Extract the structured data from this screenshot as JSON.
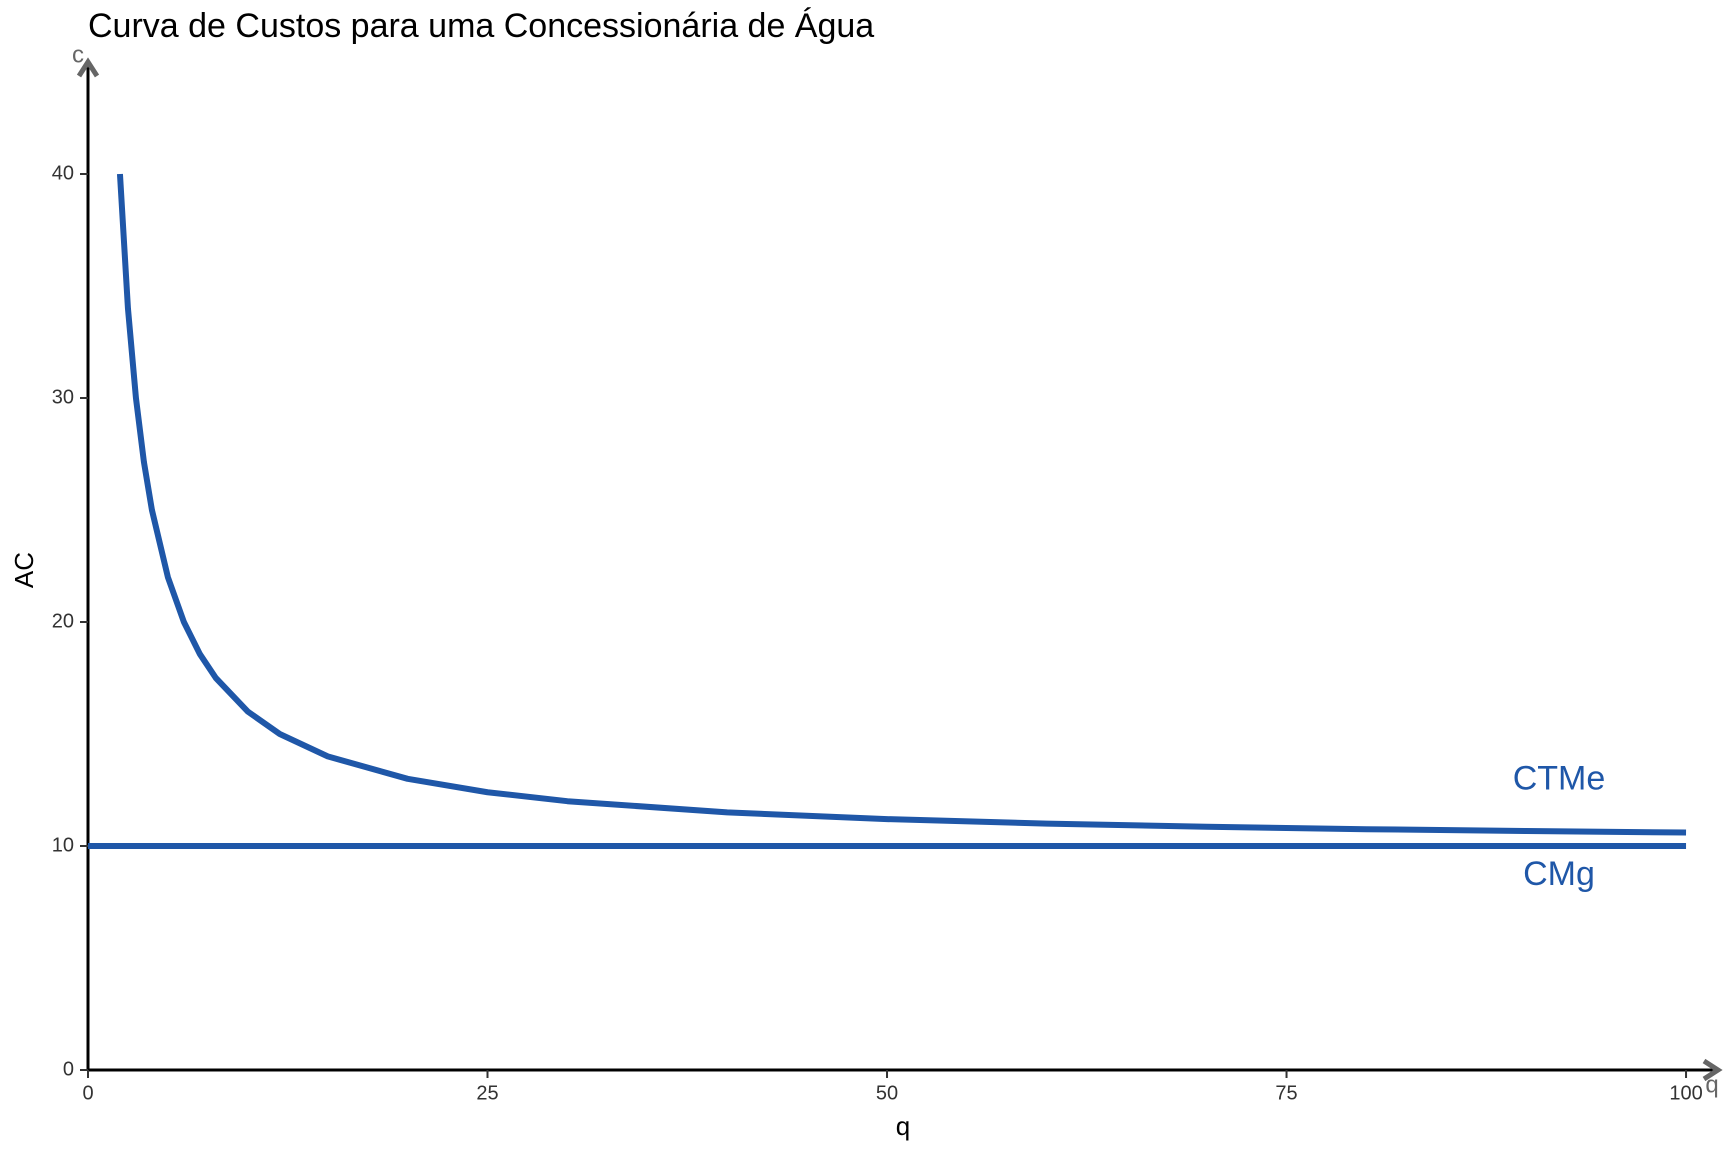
{
  "chart_data": {
    "type": "line",
    "title": "Curva de Custos para uma Concessionária de Água",
    "x_label": "q",
    "y_label": "AC",
    "x_axis_end_label": "q",
    "y_axis_end_label": "c",
    "xlim": [
      0,
      102
    ],
    "ylim": [
      0,
      45
    ],
    "xticks": [
      0,
      25,
      50,
      75,
      100
    ],
    "yticks": [
      0,
      10,
      20,
      30,
      40
    ],
    "grid": false,
    "series": [
      {
        "name": "CTMe",
        "color": "#1f57a8",
        "x": [
          2,
          2.5,
          3,
          3.5,
          4,
          5,
          6,
          7,
          8,
          10,
          12,
          15,
          20,
          25,
          30,
          40,
          50,
          60,
          70,
          80,
          90,
          100
        ],
        "values": [
          40,
          34,
          30,
          27.14,
          25,
          22,
          20,
          18.57,
          17.5,
          16,
          15,
          14,
          13,
          12.4,
          12,
          11.5,
          11.2,
          11,
          10.86,
          10.75,
          10.67,
          10.6
        ]
      },
      {
        "name": "CMg",
        "color": "#1f57a8",
        "x": [
          0,
          100
        ],
        "values": [
          10,
          10
        ]
      }
    ]
  }
}
